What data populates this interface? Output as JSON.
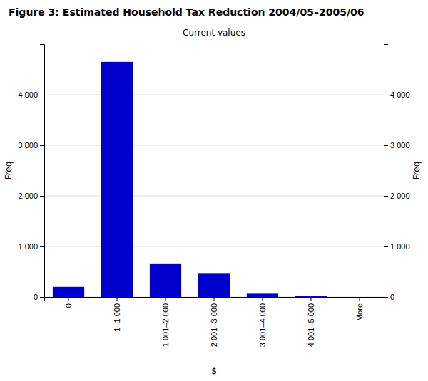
{
  "chart_data": {
    "type": "bar",
    "title": "Figure 3: Estimated Household Tax Reduction 2004/05–2005/06",
    "subtitle": "Current values",
    "categories": [
      "0",
      "1–1 000",
      "1 001–2 000",
      "2 001–3 000",
      "3 001–4 000",
      "4 001–5 000",
      "More"
    ],
    "values": [
      200,
      4650,
      650,
      460,
      65,
      25,
      0
    ],
    "color": "#0000CC",
    "xlabel": "$",
    "ylabel": "Freq",
    "y2label": "Freq",
    "ylim": [
      0,
      5000
    ],
    "yticks": [
      0,
      {
        "value": 1000,
        "label": "1 000"
      },
      {
        "value": 2000,
        "label": "2 000"
      },
      {
        "value": 3000,
        "label": "3 000"
      },
      {
        "value": 4000,
        "label": "4 000"
      }
    ],
    "y2lim": [
      0,
      5000
    ],
    "y2ticks": [
      0,
      {
        "value": 1000,
        "label": "1 000"
      },
      {
        "value": 2000,
        "label": "2 000"
      },
      {
        "value": 3000,
        "label": "3 000"
      },
      {
        "value": 4000,
        "label": "4 000"
      }
    ],
    "grid": true
  }
}
